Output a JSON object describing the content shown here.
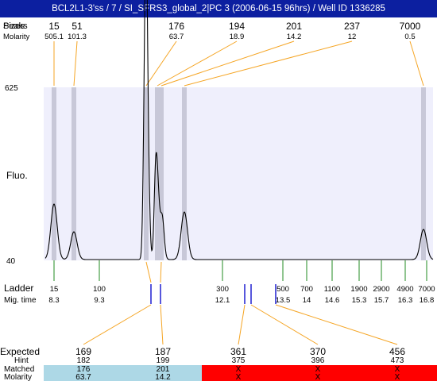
{
  "title": "BCL2L1-3'ss / 7 / SI_SFRS3_global_2|PC 3 (2006-06-15 96hrs) / Well ID 1336285",
  "header": {
    "size_label_overlap_a": "Peaks",
    "size_label_overlap_b": "Sizes",
    "molarity_label": "Molarity",
    "sizes": [
      "15",
      "51",
      "176",
      "194",
      "201",
      "237",
      "7000"
    ],
    "molarities": [
      "505.1",
      "101.3",
      "63.7",
      "18.9",
      "14.2",
      "12",
      "0.5"
    ]
  },
  "plot": {
    "y_axis_label": "Fluo.",
    "y_max_label": "625",
    "y_min_label": "40",
    "background": "#efeffc",
    "band_color": "#c8c8d8"
  },
  "ladder": {
    "label": "Ladder",
    "mig_label": "Mig. time",
    "sizes": [
      "15",
      "100",
      "300",
      "500",
      "700",
      "1100",
      "1900",
      "2900",
      "4900",
      "7000"
    ],
    "times": [
      "8.3",
      "9.3",
      "12.1",
      "13.5",
      "14",
      "14.6",
      "15.3",
      "15.7",
      "16.3",
      "16.8"
    ],
    "tick_color": "#228b22"
  },
  "table": {
    "expected_label": "Expected",
    "hint_label": "Hint",
    "matched_label": "Matched",
    "molarity_label": "Molarity",
    "expected": [
      "169",
      "187",
      "361",
      "370",
      "456"
    ],
    "expected_colors": [
      "#e8101e",
      "#e8101e",
      "#000000",
      "#000000",
      "#000000"
    ],
    "hint": [
      "182",
      "199",
      "375",
      "396",
      "473"
    ],
    "matched": [
      "176",
      "201",
      "X",
      "X",
      "X"
    ],
    "molarity": [
      "63.7",
      "14.2",
      "X",
      "X",
      "X"
    ],
    "matched_bg": "#add8e6",
    "unmatched_bg": "#ff0000",
    "connector_color": "#f5a524"
  }
}
